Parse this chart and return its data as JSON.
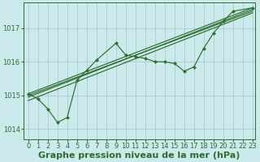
{
  "background_color": "#cce9ec",
  "grid_color": "#aacdd1",
  "line_color": "#2d6e2d",
  "xlabel": "Graphe pression niveau de la mer (hPa)",
  "xlabel_fontsize": 8,
  "tick_fontsize": 6,
  "xlim": [
    -0.5,
    23.3
  ],
  "ylim": [
    1013.7,
    1017.75
  ],
  "yticks": [
    1014,
    1015,
    1016,
    1017
  ],
  "xticks": [
    0,
    1,
    2,
    3,
    4,
    5,
    6,
    7,
    8,
    9,
    10,
    11,
    12,
    13,
    14,
    15,
    16,
    17,
    18,
    19,
    20,
    21,
    22,
    23
  ],
  "trend_lines": [
    [
      [
        0,
        23
      ],
      [
        1014.95,
        1017.55
      ]
    ],
    [
      [
        0,
        23
      ],
      [
        1015.05,
        1017.6
      ]
    ],
    [
      [
        0,
        23
      ],
      [
        1015.0,
        1017.5
      ]
    ],
    [
      [
        0,
        23
      ],
      [
        1014.85,
        1017.45
      ]
    ]
  ],
  "jagged_series": [
    1015.05,
    1014.9,
    1014.6,
    1014.2,
    1014.35,
    1015.45,
    1015.75,
    1016.05,
    1016.55,
    1016.2,
    1016.15,
    1016.1,
    1016.0,
    1016.0,
    1015.95,
    1015.72,
    1015.85,
    1016.4,
    1016.85,
    1017.2,
    1017.5,
    1017.6
  ],
  "jagged_x": [
    0,
    1,
    2,
    3,
    4,
    5,
    6,
    7,
    9,
    10,
    11,
    12,
    13,
    14,
    15,
    16,
    17,
    18,
    19,
    20,
    21,
    23
  ]
}
